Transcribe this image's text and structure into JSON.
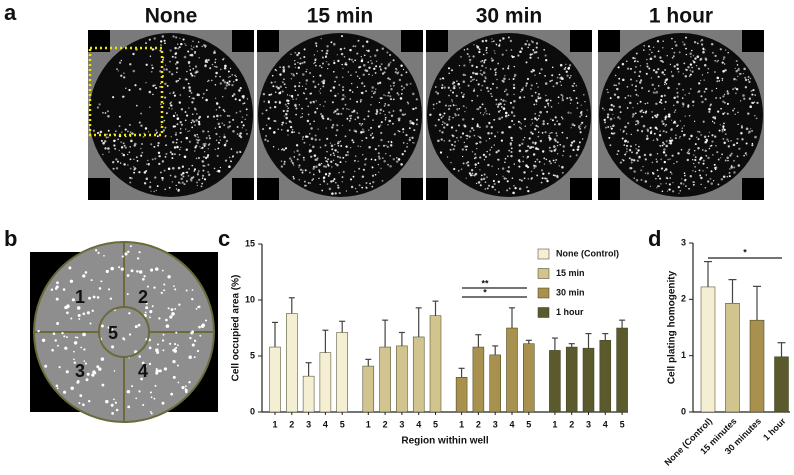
{
  "panels": [
    "a",
    "b",
    "c",
    "d"
  ],
  "images": {
    "titles": [
      "None",
      "15 min",
      "30 min",
      "1 hour"
    ]
  },
  "diagram": {
    "regions": [
      "1",
      "2",
      "3",
      "4",
      "5"
    ]
  },
  "chart_data": [
    {
      "type": "bar",
      "y_label": "Cell occupied area (%)",
      "x_label": "Region within well",
      "categories": [
        "1",
        "2",
        "3",
        "4",
        "5"
      ],
      "series": [
        {
          "name": "None (Control)",
          "color": "#f4eed3",
          "values": [
            5.8,
            8.8,
            3.2,
            5.3,
            7.1
          ],
          "errors": [
            2.2,
            1.4,
            1.2,
            2.0,
            1.0
          ]
        },
        {
          "name": "15 min",
          "color": "#d2c48f",
          "values": [
            4.1,
            5.8,
            5.9,
            6.7,
            8.6
          ],
          "errors": [
            0.6,
            2.4,
            1.2,
            2.6,
            1.3
          ]
        },
        {
          "name": "30 min",
          "color": "#a8914e",
          "values": [
            3.1,
            5.8,
            5.1,
            7.5,
            6.1
          ],
          "errors": [
            0.8,
            1.1,
            0.8,
            1.8,
            0.3
          ]
        },
        {
          "name": "1 hour",
          "color": "#5b5a2c",
          "values": [
            5.5,
            5.8,
            5.7,
            6.4,
            7.5
          ],
          "errors": [
            1.1,
            0.3,
            1.3,
            0.6,
            0.7
          ]
        }
      ],
      "ylim": [
        0,
        15
      ],
      "yticks": [
        0,
        5,
        10,
        15
      ],
      "annotations": [
        "**",
        "*"
      ]
    },
    {
      "type": "bar",
      "y_label": "Cell plating homogenity",
      "categories": [
        "None (Control)",
        "15 minutes",
        "30 minutes",
        "1 hour"
      ],
      "values": [
        2.22,
        1.93,
        1.63,
        0.98
      ],
      "errors": [
        0.45,
        0.42,
        0.6,
        0.25
      ],
      "colors": [
        "#f4eed3",
        "#d2c48f",
        "#a8914e",
        "#5b5a2c"
      ],
      "ylim": [
        0,
        3
      ],
      "yticks": [
        0,
        1,
        2,
        3
      ],
      "annotations": [
        "*"
      ]
    }
  ]
}
